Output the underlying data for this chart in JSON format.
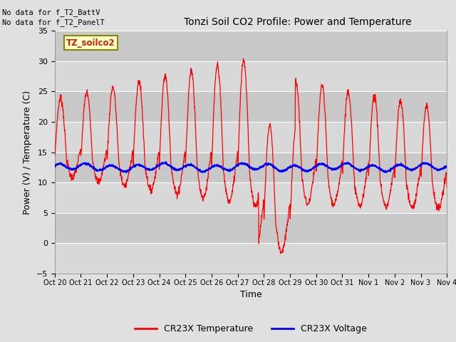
{
  "title": "Tonzi Soil CO2 Profile: Power and Temperature",
  "xlabel": "Time",
  "ylabel": "Power (V) / Temperature (C)",
  "ylim": [
    -5,
    35
  ],
  "yticks": [
    -5,
    0,
    5,
    10,
    15,
    20,
    25,
    30,
    35
  ],
  "xtick_labels": [
    "Oct 20",
    "Oct 21",
    "Oct 22",
    "Oct 23",
    "Oct 24",
    "Oct 25",
    "Oct 26",
    "Oct 27",
    "Oct 28",
    "Oct 29",
    "Oct 30",
    "Oct 31",
    "Nov 1",
    "Nov 2",
    "Nov 3",
    "Nov 4"
  ],
  "legend_labels": [
    "CR23X Temperature",
    "CR23X Voltage"
  ],
  "legend_colors": [
    "red",
    "blue"
  ],
  "temp_color": "red",
  "voltage_color": "blue",
  "annotation_text1": "No data for f_T2_BattV",
  "annotation_text2": "No data for f_T2_PanelT",
  "box_label": "TZ_soilco2",
  "fig_bg_color": "#e0e0e0",
  "plot_bg_color": "#c8c8c8",
  "band_color_light": "#d8d8d8",
  "num_days": 15
}
